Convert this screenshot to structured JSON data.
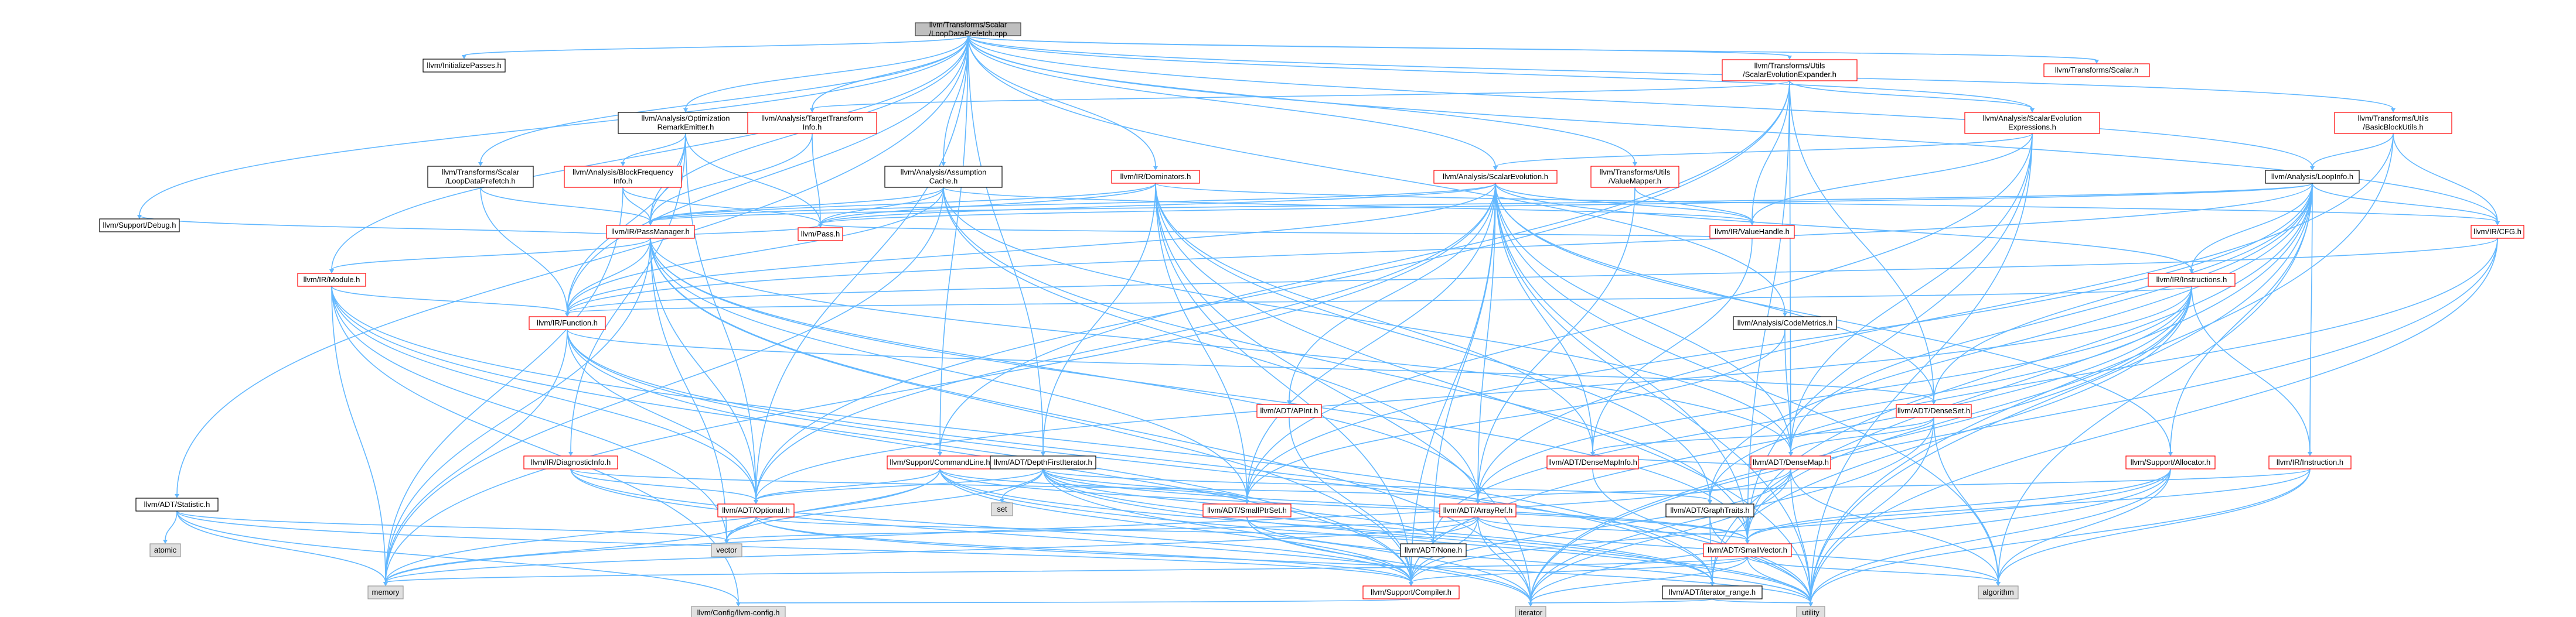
{
  "colors": {
    "edge": "#63b8ff",
    "root_fill": "#bfbfbf",
    "gray_fill": "#e0e0e0",
    "gray_stroke": "#999999",
    "red_stroke": "#ff0000",
    "black_stroke": "#000000"
  },
  "nodes": [
    {
      "id": "root",
      "lines": [
        "llvm/Transforms/Scalar",
        "/LoopDataPrefetch.cpp"
      ],
      "style": "root"
    },
    {
      "id": "initpasses",
      "lines": [
        "llvm/InitializePasses.h"
      ],
      "style": "normal"
    },
    {
      "id": "seutils",
      "lines": [
        "llvm/Transforms/Utils",
        "/ScalarEvolutionExpander.h"
      ],
      "style": "red"
    },
    {
      "id": "scalar",
      "lines": [
        "llvm/Transforms/Scalar.h"
      ],
      "style": "red"
    },
    {
      "id": "optremark",
      "lines": [
        "llvm/Analysis/Optimization",
        "RemarkEmitter.h"
      ],
      "style": "normal"
    },
    {
      "id": "tti",
      "lines": [
        "llvm/Analysis/TargetTransform",
        "Info.h"
      ],
      "style": "red"
    },
    {
      "id": "seexpr",
      "lines": [
        "llvm/Analysis/ScalarEvolution",
        "Expressions.h"
      ],
      "style": "red"
    },
    {
      "id": "bbutils",
      "lines": [
        "llvm/Transforms/Utils",
        "/BasicBlockUtils.h"
      ],
      "style": "red"
    },
    {
      "id": "ldph",
      "lines": [
        "llvm/Transforms/Scalar",
        "/LoopDataPrefetch.h"
      ],
      "style": "normal"
    },
    {
      "id": "bfi",
      "lines": [
        "llvm/Analysis/BlockFrequency",
        "Info.h"
      ],
      "style": "red"
    },
    {
      "id": "ac",
      "lines": [
        "llvm/Analysis/Assumption",
        "Cache.h"
      ],
      "style": "normal"
    },
    {
      "id": "dominators",
      "lines": [
        "llvm/IR/Dominators.h"
      ],
      "style": "red"
    },
    {
      "id": "se",
      "lines": [
        "llvm/Analysis/ScalarEvolution.h"
      ],
      "style": "red"
    },
    {
      "id": "valuemapper",
      "lines": [
        "llvm/Transforms/Utils",
        "/ValueMapper.h"
      ],
      "style": "red"
    },
    {
      "id": "loopinfo",
      "lines": [
        "llvm/Analysis/LoopInfo.h"
      ],
      "style": "normal"
    },
    {
      "id": "passmanager",
      "lines": [
        "llvm/IR/PassManager.h"
      ],
      "style": "red"
    },
    {
      "id": "valuehandle",
      "lines": [
        "llvm/IR/ValueHandle.h"
      ],
      "style": "red"
    },
    {
      "id": "cfg",
      "lines": [
        "llvm/IR/CFG.h"
      ],
      "style": "red"
    },
    {
      "id": "debug",
      "lines": [
        "llvm/Support/Debug.h"
      ],
      "style": "normal"
    },
    {
      "id": "pass",
      "lines": [
        "llvm/Pass.h"
      ],
      "style": "red"
    },
    {
      "id": "module",
      "lines": [
        "llvm/IR/Module.h"
      ],
      "style": "red"
    },
    {
      "id": "instructions",
      "lines": [
        "llvm/IR/Instructions.h"
      ],
      "style": "red"
    },
    {
      "id": "function",
      "lines": [
        "llvm/IR/Function.h"
      ],
      "style": "red"
    },
    {
      "id": "codemetrics",
      "lines": [
        "llvm/Analysis/CodeMetrics.h"
      ],
      "style": "normal"
    },
    {
      "id": "apint",
      "lines": [
        "llvm/ADT/APInt.h"
      ],
      "style": "red"
    },
    {
      "id": "denseset",
      "lines": [
        "llvm/ADT/DenseSet.h"
      ],
      "style": "red"
    },
    {
      "id": "densemap",
      "lines": [
        "llvm/ADT/DenseMap.h"
      ],
      "style": "red"
    },
    {
      "id": "densemapinfo",
      "lines": [
        "llvm/ADT/DenseMapInfo.h"
      ],
      "style": "red"
    },
    {
      "id": "diaginfo",
      "lines": [
        "llvm/IR/DiagnosticInfo.h"
      ],
      "style": "red"
    },
    {
      "id": "cmdline",
      "lines": [
        "llvm/Support/CommandLine.h"
      ],
      "style": "red"
    },
    {
      "id": "dfi",
      "lines": [
        "llvm/ADT/DepthFirstIterator.h"
      ],
      "style": "normal"
    },
    {
      "id": "allocator",
      "lines": [
        "llvm/Support/Allocator.h"
      ],
      "style": "red"
    },
    {
      "id": "instruction",
      "lines": [
        "llvm/IR/Instruction.h"
      ],
      "style": "red"
    },
    {
      "id": "statistic",
      "lines": [
        "llvm/ADT/Statistic.h"
      ],
      "style": "normal"
    },
    {
      "id": "set",
      "lines": [
        "set"
      ],
      "style": "gray"
    },
    {
      "id": "smallptrset",
      "lines": [
        "llvm/ADT/SmallPtrSet.h"
      ],
      "style": "red"
    },
    {
      "id": "arrayref",
      "lines": [
        "llvm/ADT/ArrayRef.h"
      ],
      "style": "red"
    },
    {
      "id": "graphtraits",
      "lines": [
        "llvm/ADT/GraphTraits.h"
      ],
      "style": "normal"
    },
    {
      "id": "optional",
      "lines": [
        "llvm/ADT/Optional.h"
      ],
      "style": "red"
    },
    {
      "id": "atomic",
      "lines": [
        "atomic"
      ],
      "style": "gray"
    },
    {
      "id": "vector",
      "lines": [
        "vector"
      ],
      "style": "gray"
    },
    {
      "id": "none",
      "lines": [
        "llvm/ADT/None.h"
      ],
      "style": "normal"
    },
    {
      "id": "smallvector",
      "lines": [
        "llvm/ADT/SmallVector.h"
      ],
      "style": "red"
    },
    {
      "id": "memory",
      "lines": [
        "memory"
      ],
      "style": "gray"
    },
    {
      "id": "compiler",
      "lines": [
        "llvm/Support/Compiler.h"
      ],
      "style": "red"
    },
    {
      "id": "iterrange",
      "lines": [
        "llvm/ADT/iterator_range.h"
      ],
      "style": "normal"
    },
    {
      "id": "algorithm",
      "lines": [
        "algorithm"
      ],
      "style": "gray"
    },
    {
      "id": "llvmconfig",
      "lines": [
        "llvm/Config/llvm-config.h"
      ],
      "style": "gray"
    },
    {
      "id": "iterator",
      "lines": [
        "iterator"
      ],
      "style": "gray"
    },
    {
      "id": "utility",
      "lines": [
        "utility"
      ],
      "style": "gray"
    }
  ],
  "edges": [
    [
      "root",
      "initpasses"
    ],
    [
      "root",
      "seutils"
    ],
    [
      "root",
      "scalar"
    ],
    [
      "root",
      "optremark"
    ],
    [
      "root",
      "tti"
    ],
    [
      "root",
      "seexpr"
    ],
    [
      "root",
      "bbutils"
    ],
    [
      "root",
      "ldph"
    ],
    [
      "root",
      "ac"
    ],
    [
      "root",
      "dominators"
    ],
    [
      "root",
      "se"
    ],
    [
      "root",
      "valuemapper"
    ],
    [
      "root",
      "loopinfo"
    ],
    [
      "root",
      "cfg"
    ],
    [
      "root",
      "debug"
    ],
    [
      "root",
      "module"
    ],
    [
      "root",
      "function"
    ],
    [
      "root",
      "codemetrics"
    ],
    [
      "root",
      "cmdline"
    ],
    [
      "root",
      "dfi"
    ],
    [
      "root",
      "statistic"
    ],
    [
      "root",
      "optional"
    ],
    [
      "root",
      "passmanager"
    ],
    [
      "seutils",
      "seexpr"
    ],
    [
      "seutils",
      "tti"
    ],
    [
      "seutils",
      "valuehandle"
    ],
    [
      "seutils",
      "denseset"
    ],
    [
      "seutils",
      "densemap"
    ],
    [
      "seutils",
      "optional"
    ],
    [
      "seutils",
      "cmdline"
    ],
    [
      "seutils",
      "smallvector"
    ],
    [
      "optremark",
      "bfi"
    ],
    [
      "optremark",
      "passmanager"
    ],
    [
      "optremark",
      "pass"
    ],
    [
      "optremark",
      "diaginfo"
    ],
    [
      "optremark",
      "function"
    ],
    [
      "optremark",
      "optional"
    ],
    [
      "tti",
      "pass"
    ],
    [
      "tti",
      "passmanager"
    ],
    [
      "seexpr",
      "se"
    ],
    [
      "seexpr",
      "valuehandle"
    ],
    [
      "seexpr",
      "densemap"
    ],
    [
      "seexpr",
      "smallptrset"
    ],
    [
      "seexpr",
      "smallvector"
    ],
    [
      "seexpr",
      "utility"
    ],
    [
      "bbutils",
      "loopinfo"
    ],
    [
      "bbutils",
      "cfg"
    ],
    [
      "bbutils",
      "arrayref"
    ],
    [
      "bbutils",
      "utility"
    ],
    [
      "ldph",
      "passmanager"
    ],
    [
      "ldph",
      "function"
    ],
    [
      "bfi",
      "passmanager"
    ],
    [
      "bfi",
      "pass"
    ],
    [
      "bfi",
      "memory"
    ],
    [
      "ac",
      "passmanager"
    ],
    [
      "ac",
      "pass"
    ],
    [
      "ac",
      "valuehandle"
    ],
    [
      "ac",
      "densemap"
    ],
    [
      "ac",
      "smallvector"
    ],
    [
      "ac",
      "arrayref"
    ],
    [
      "ac",
      "memory"
    ],
    [
      "ac",
      "function"
    ],
    [
      "dominators",
      "passmanager"
    ],
    [
      "dominators",
      "pass"
    ],
    [
      "dominators",
      "cfg"
    ],
    [
      "dominators",
      "dfi"
    ],
    [
      "dominators",
      "graphtraits"
    ],
    [
      "dominators",
      "densemapinfo"
    ],
    [
      "dominators",
      "iterator"
    ],
    [
      "dominators",
      "utility"
    ],
    [
      "dominators",
      "compiler"
    ],
    [
      "dominators",
      "smallptrset"
    ],
    [
      "se",
      "passmanager"
    ],
    [
      "se",
      "pass"
    ],
    [
      "se",
      "valuehandle"
    ],
    [
      "se",
      "instructions"
    ],
    [
      "se",
      "function"
    ],
    [
      "se",
      "apint"
    ],
    [
      "se",
      "densemap"
    ],
    [
      "se",
      "densemapinfo"
    ],
    [
      "se",
      "smallptrset"
    ],
    [
      "se",
      "smallvector"
    ],
    [
      "se",
      "arrayref"
    ],
    [
      "se",
      "optional"
    ],
    [
      "se",
      "denseset"
    ],
    [
      "se",
      "memory"
    ],
    [
      "se",
      "allocator"
    ],
    [
      "se",
      "compiler"
    ],
    [
      "se",
      "utility"
    ],
    [
      "se",
      "algorithm"
    ],
    [
      "se",
      "none"
    ],
    [
      "valuemapper",
      "valuehandle"
    ],
    [
      "valuemapper",
      "arrayref"
    ],
    [
      "loopinfo",
      "passmanager"
    ],
    [
      "loopinfo",
      "pass"
    ],
    [
      "loopinfo",
      "cfg"
    ],
    [
      "loopinfo",
      "instructions"
    ],
    [
      "loopinfo",
      "instruction"
    ],
    [
      "loopinfo",
      "densemap"
    ],
    [
      "loopinfo",
      "denseset"
    ],
    [
      "loopinfo",
      "smallptrset"
    ],
    [
      "loopinfo",
      "smallvector"
    ],
    [
      "loopinfo",
      "graphtraits"
    ],
    [
      "loopinfo",
      "allocator"
    ],
    [
      "loopinfo",
      "iterrange"
    ],
    [
      "loopinfo",
      "algorithm"
    ],
    [
      "loopinfo",
      "utility"
    ],
    [
      "loopinfo",
      "function"
    ],
    [
      "passmanager",
      "pass"
    ],
    [
      "passmanager",
      "function"
    ],
    [
      "passmanager",
      "module"
    ],
    [
      "passmanager",
      "densemap"
    ],
    [
      "passmanager",
      "smallptrset"
    ],
    [
      "passmanager",
      "smallvector"
    ],
    [
      "passmanager",
      "optional"
    ],
    [
      "passmanager",
      "compiler"
    ],
    [
      "passmanager",
      "memory"
    ],
    [
      "passmanager",
      "vector"
    ],
    [
      "passmanager",
      "iterator"
    ],
    [
      "passmanager",
      "debug"
    ],
    [
      "passmanager",
      "arrayref"
    ],
    [
      "valuehandle",
      "densemapinfo"
    ],
    [
      "valuehandle",
      "pass"
    ],
    [
      "cfg",
      "function"
    ],
    [
      "cfg",
      "graphtraits"
    ],
    [
      "cfg",
      "iterator"
    ],
    [
      "cfg",
      "utility"
    ],
    [
      "module",
      "function"
    ],
    [
      "module",
      "optional"
    ],
    [
      "module",
      "memory"
    ],
    [
      "module",
      "vector"
    ],
    [
      "module",
      "iterrange"
    ],
    [
      "module",
      "compiler"
    ],
    [
      "module",
      "llvmconfig"
    ],
    [
      "instructions",
      "function"
    ],
    [
      "instructions",
      "instruction"
    ],
    [
      "instructions",
      "arrayref"
    ],
    [
      "instructions",
      "optional"
    ],
    [
      "instructions",
      "smallvector"
    ],
    [
      "instructions",
      "iterrange"
    ],
    [
      "instructions",
      "iterator"
    ],
    [
      "instructions",
      "compiler"
    ],
    [
      "instructions",
      "none"
    ],
    [
      "function",
      "denseset"
    ],
    [
      "function",
      "optional"
    ],
    [
      "function",
      "iterrange"
    ],
    [
      "function",
      "compiler"
    ],
    [
      "function",
      "memory"
    ],
    [
      "function",
      "utility"
    ],
    [
      "codemetrics",
      "densemap"
    ],
    [
      "codemetrics",
      "smallptrset"
    ],
    [
      "apint",
      "compiler"
    ],
    [
      "denseset",
      "densemap"
    ],
    [
      "denseset",
      "densemapinfo"
    ],
    [
      "denseset",
      "algorithm"
    ],
    [
      "denseset",
      "iterator"
    ],
    [
      "denseset",
      "utility"
    ],
    [
      "densemap",
      "densemapinfo"
    ],
    [
      "densemap",
      "compiler"
    ],
    [
      "densemap",
      "algorithm"
    ],
    [
      "densemap",
      "iterator"
    ],
    [
      "densemap",
      "utility"
    ],
    [
      "densemap",
      "memory"
    ],
    [
      "densemapinfo",
      "utility"
    ],
    [
      "diaginfo",
      "optional"
    ],
    [
      "diaginfo",
      "arrayref"
    ],
    [
      "diaginfo",
      "compiler"
    ],
    [
      "diaginfo",
      "iterator"
    ],
    [
      "cmdline",
      "smallptrset"
    ],
    [
      "cmdline",
      "smallvector"
    ],
    [
      "cmdline",
      "iterrange"
    ],
    [
      "cmdline",
      "compiler"
    ],
    [
      "cmdline",
      "vector"
    ],
    [
      "cmdline",
      "memory"
    ],
    [
      "cmdline",
      "utility"
    ],
    [
      "cmdline",
      "optional"
    ],
    [
      "dfi",
      "smallptrset"
    ],
    [
      "dfi",
      "smallvector"
    ],
    [
      "dfi",
      "graphtraits"
    ],
    [
      "dfi",
      "iterrange"
    ],
    [
      "dfi",
      "set"
    ],
    [
      "dfi",
      "vector"
    ],
    [
      "dfi",
      "utility"
    ],
    [
      "dfi",
      "iterator"
    ],
    [
      "dfi",
      "none"
    ],
    [
      "dfi",
      "optional"
    ],
    [
      "allocator",
      "smallvector"
    ],
    [
      "allocator",
      "compiler"
    ],
    [
      "allocator",
      "algorithm"
    ],
    [
      "allocator",
      "utility"
    ],
    [
      "allocator",
      "iterator"
    ],
    [
      "instruction",
      "arrayref"
    ],
    [
      "instruction",
      "smallvector"
    ],
    [
      "instruction",
      "algorithm"
    ],
    [
      "instruction",
      "utility"
    ],
    [
      "statistic",
      "atomic"
    ],
    [
      "statistic",
      "memory"
    ],
    [
      "statistic",
      "vector"
    ],
    [
      "statistic",
      "compiler"
    ],
    [
      "statistic",
      "llvmconfig"
    ],
    [
      "smallptrset",
      "compiler"
    ],
    [
      "smallptrset",
      "iterator"
    ],
    [
      "smallptrset",
      "utility"
    ],
    [
      "arrayref",
      "smallvector"
    ],
    [
      "arrayref",
      "none"
    ],
    [
      "arrayref",
      "compiler"
    ],
    [
      "arrayref",
      "vector"
    ],
    [
      "arrayref",
      "iterator"
    ],
    [
      "arrayref",
      "memory"
    ],
    [
      "arrayref",
      "algorithm"
    ],
    [
      "graphtraits",
      "iterrange"
    ],
    [
      "graphtraits",
      "utility"
    ],
    [
      "optional",
      "none"
    ],
    [
      "optional",
      "compiler"
    ],
    [
      "optional",
      "memory"
    ],
    [
      "optional",
      "utility"
    ],
    [
      "smallvector",
      "compiler"
    ],
    [
      "smallvector",
      "algorithm"
    ],
    [
      "smallvector",
      "iterator"
    ],
    [
      "smallvector",
      "memory"
    ],
    [
      "smallvector",
      "utility"
    ],
    [
      "compiler",
      "llvmconfig"
    ],
    [
      "iterrange",
      "iterator"
    ],
    [
      "iterrange",
      "utility"
    ]
  ]
}
